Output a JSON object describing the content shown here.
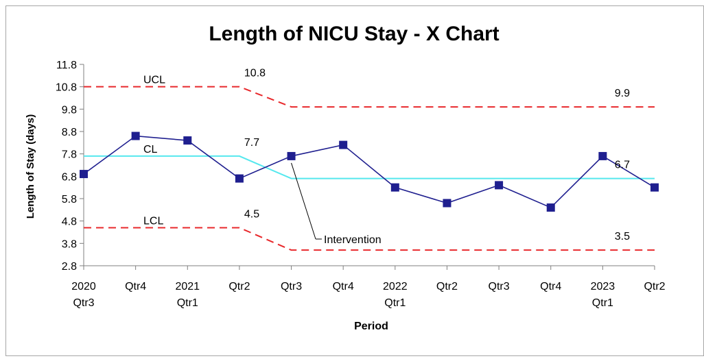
{
  "page_caption": "",
  "chart_data": {
    "type": "line",
    "title": "Length of NICU Stay - X Chart",
    "xlabel": "Period",
    "ylabel": "Length of Stay (days)",
    "ylim": [
      2.8,
      11.8
    ],
    "y_ticks": [
      "11.8",
      "10.8",
      "9.8",
      "8.8",
      "7.8",
      "6.8",
      "5.8",
      "4.8",
      "3.8",
      "2.8"
    ],
    "categories": [
      [
        "2020",
        "Qtr3"
      ],
      [
        "Qtr4"
      ],
      [
        "2021",
        "Qtr1"
      ],
      [
        "Qtr2"
      ],
      [
        "Qtr3"
      ],
      [
        "Qtr4"
      ],
      [
        "2022",
        "Qtr1"
      ],
      [
        "Qtr2"
      ],
      [
        "Qtr3"
      ],
      [
        "Qtr4"
      ],
      [
        "2023",
        "Qtr1"
      ],
      [
        "Qtr2"
      ]
    ],
    "series": [
      {
        "name": "",
        "role": "data",
        "color": "#1f1f8f",
        "marker": "square",
        "values": [
          6.9,
          8.6,
          8.4,
          6.7,
          7.7,
          8.2,
          6.3,
          5.6,
          6.4,
          5.4,
          7.7,
          6.3
        ]
      },
      {
        "name": "UCL",
        "role": "ucl",
        "color": "#e8282b",
        "dashed": true,
        "values": [
          10.8,
          10.8,
          10.8,
          10.8,
          9.9,
          9.9,
          9.9,
          9.9,
          9.9,
          9.9,
          9.9,
          9.9
        ]
      },
      {
        "name": "CL",
        "role": "cl",
        "color": "#55e8ee",
        "values": [
          7.7,
          7.7,
          7.7,
          7.7,
          6.7,
          6.7,
          6.7,
          6.7,
          6.7,
          6.7,
          6.7,
          6.7
        ]
      },
      {
        "name": "LCL",
        "role": "lcl",
        "color": "#e8282b",
        "dashed": true,
        "values": [
          4.5,
          4.5,
          4.5,
          4.5,
          3.5,
          3.5,
          3.5,
          3.5,
          3.5,
          3.5,
          3.5,
          3.5
        ]
      }
    ],
    "line_labels": [
      "UCL",
      "CL",
      "LCL"
    ],
    "value_labels": [
      {
        "text": "10.8",
        "at_index": 3,
        "value": 10.8
      },
      {
        "text": "9.9",
        "at_index": 11,
        "value": 9.9
      },
      {
        "text": "7.7",
        "at_index": 3,
        "value": 7.7
      },
      {
        "text": "6.7",
        "at_index": 11,
        "value": 6.7
      },
      {
        "text": "4.5",
        "at_index": 3,
        "value": 4.5
      },
      {
        "text": "3.5",
        "at_index": 11,
        "value": 3.5
      }
    ],
    "annotation": {
      "text": "Intervention",
      "points_to_index": 4
    },
    "grid": false,
    "legend": "none"
  }
}
